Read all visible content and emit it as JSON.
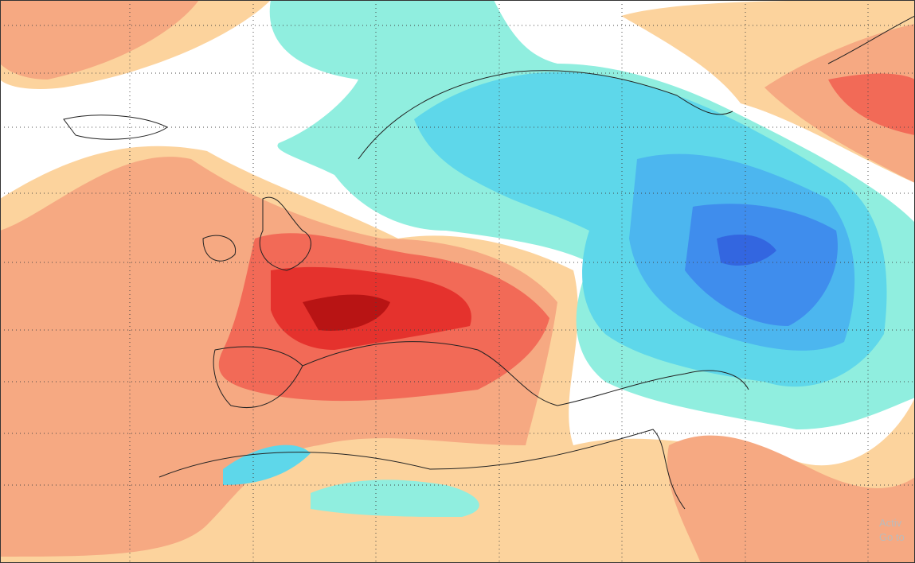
{
  "watermark": {
    "line1": "Activ",
    "line2": "Go to"
  }
}
